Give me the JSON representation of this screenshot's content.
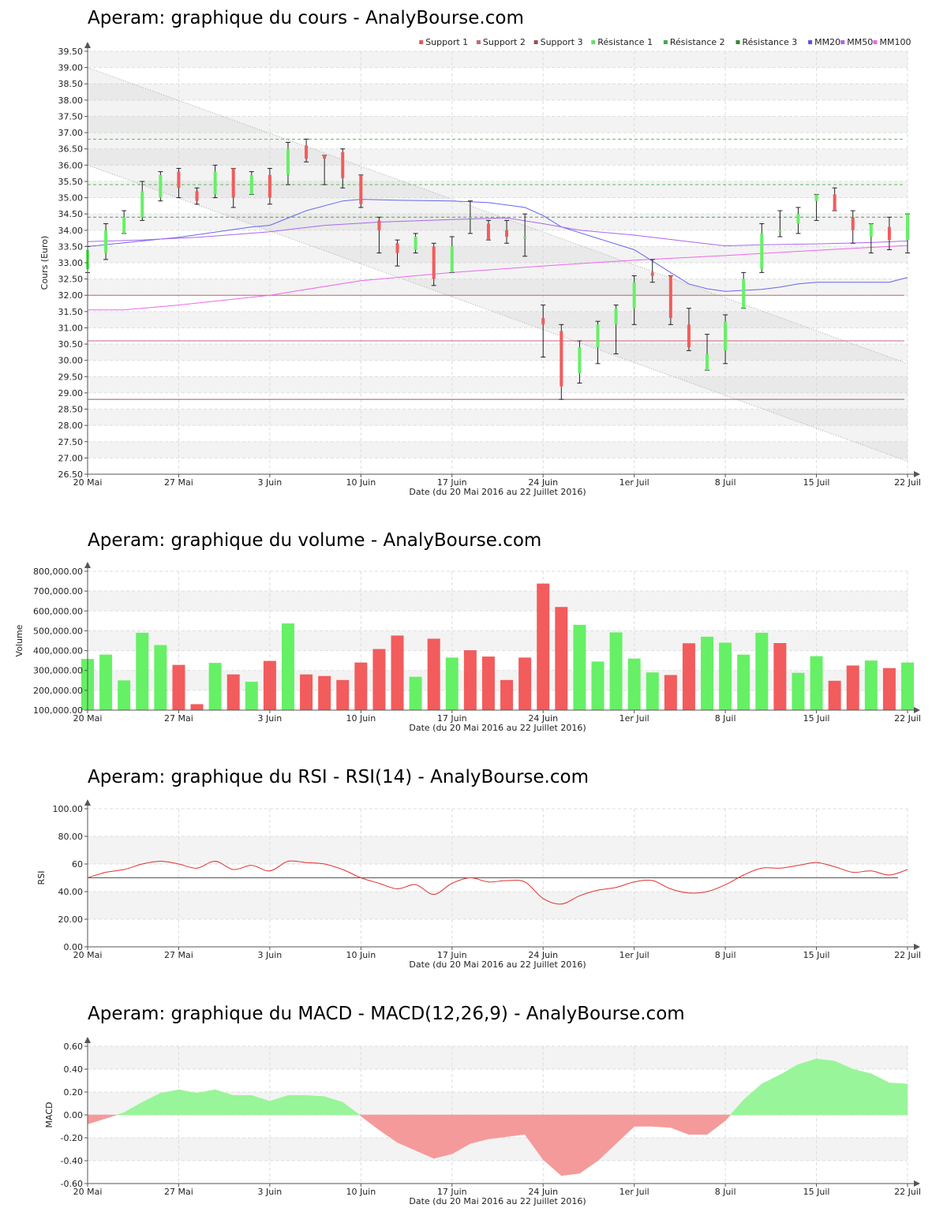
{
  "chart_data": [
    {
      "id": "cours",
      "type": "candlestick",
      "title": "Aperam: graphique du cours - AnalyBourse.com",
      "xlabel": "Date (du 20 Mai 2016 au 22 Juillet 2016)",
      "ylabel": "Cours (Euro)",
      "ylim": [
        26.5,
        39.5
      ],
      "yticks": [
        "26.50",
        "27.00",
        "27.50",
        "28.00",
        "28.50",
        "29.00",
        "29.50",
        "30.00",
        "30.50",
        "31.00",
        "31.50",
        "32.00",
        "32.50",
        "33.00",
        "33.50",
        "34.00",
        "34.50",
        "35.00",
        "35.50",
        "36.00",
        "36.50",
        "37.00",
        "37.50",
        "38.00",
        "38.50",
        "39.00",
        "39.50"
      ],
      "x_tick_labels": [
        {
          "i": 0,
          "label": "20 Mai"
        },
        {
          "i": 5,
          "label": "27 Mai"
        },
        {
          "i": 10,
          "label": "3 Juin"
        },
        {
          "i": 15,
          "label": "10 Juin"
        },
        {
          "i": 20,
          "label": "17 Juin"
        },
        {
          "i": 25,
          "label": "24 Juin"
        },
        {
          "i": 30,
          "label": "1er Juil"
        },
        {
          "i": 35,
          "label": "8 Juil"
        },
        {
          "i": 40,
          "label": "15 Juil"
        },
        {
          "i": 45,
          "label": "22 Juil"
        }
      ],
      "legend": [
        {
          "label": "Support 1",
          "color": "#e05a5a"
        },
        {
          "label": "Support 2",
          "color": "#c06a6a"
        },
        {
          "label": "Support 3",
          "color": "#9a5050"
        },
        {
          "label": "Résistance 1",
          "color": "#66dd66"
        },
        {
          "label": "Résistance 2",
          "color": "#44aa44"
        },
        {
          "label": "Résistance 3",
          "color": "#338833"
        },
        {
          "label": "MM20",
          "color": "#5555ee"
        },
        {
          "label": "MM50",
          "color": "#aa66ee"
        },
        {
          "label": "MM100",
          "color": "#ee66ee"
        }
      ],
      "legend_position": "top-right",
      "candles": [
        {
          "o": 32.8,
          "h": 33.5,
          "l": 32.7,
          "c": 33.4
        },
        {
          "o": 33.3,
          "h": 34.2,
          "l": 33.1,
          "c": 34.0
        },
        {
          "o": 33.9,
          "h": 34.6,
          "l": 33.9,
          "c": 34.4
        },
        {
          "o": 34.4,
          "h": 35.5,
          "l": 34.3,
          "c": 35.2
        },
        {
          "o": 35.0,
          "h": 35.8,
          "l": 34.9,
          "c": 35.7
        },
        {
          "o": 35.8,
          "h": 35.9,
          "l": 35.0,
          "c": 35.3
        },
        {
          "o": 35.2,
          "h": 35.3,
          "l": 34.8,
          "c": 34.9
        },
        {
          "o": 35.1,
          "h": 36.0,
          "l": 35.0,
          "c": 35.8
        },
        {
          "o": 35.9,
          "h": 35.9,
          "l": 34.7,
          "c": 35.0
        },
        {
          "o": 35.1,
          "h": 35.8,
          "l": 35.1,
          "c": 35.7
        },
        {
          "o": 35.7,
          "h": 35.9,
          "l": 34.8,
          "c": 35.0
        },
        {
          "o": 35.7,
          "h": 36.7,
          "l": 35.4,
          "c": 36.5
        },
        {
          "o": 36.6,
          "h": 36.8,
          "l": 36.1,
          "c": 36.2
        },
        {
          "o": 36.3,
          "h": 36.3,
          "l": 35.4,
          "c": 36.2
        },
        {
          "o": 36.4,
          "h": 36.5,
          "l": 35.3,
          "c": 35.6
        },
        {
          "o": 35.7,
          "h": 35.7,
          "l": 34.7,
          "c": 34.8
        },
        {
          "o": 34.3,
          "h": 34.4,
          "l": 33.3,
          "c": 34.0
        },
        {
          "o": 33.6,
          "h": 33.7,
          "l": 32.9,
          "c": 33.3
        },
        {
          "o": 33.4,
          "h": 33.9,
          "l": 33.3,
          "c": 33.8
        },
        {
          "o": 33.5,
          "h": 33.6,
          "l": 32.3,
          "c": 32.5
        },
        {
          "o": 32.7,
          "h": 33.8,
          "l": 32.7,
          "c": 33.5
        },
        {
          "o": 34.4,
          "h": 34.9,
          "l": 33.9,
          "c": 34.4
        },
        {
          "o": 34.2,
          "h": 34.3,
          "l": 33.7,
          "c": 33.7
        },
        {
          "o": 34.0,
          "h": 34.3,
          "l": 33.6,
          "c": 33.8
        },
        {
          "o": 33.8,
          "h": 34.5,
          "l": 33.2,
          "c": 33.8
        },
        {
          "o": 31.3,
          "h": 31.7,
          "l": 30.1,
          "c": 31.1
        },
        {
          "o": 30.9,
          "h": 31.1,
          "l": 28.8,
          "c": 29.2
        },
        {
          "o": 29.6,
          "h": 30.6,
          "l": 29.3,
          "c": 30.4
        },
        {
          "o": 30.4,
          "h": 31.2,
          "l": 29.9,
          "c": 31.1
        },
        {
          "o": 31.1,
          "h": 31.7,
          "l": 30.2,
          "c": 31.6
        },
        {
          "o": 31.6,
          "h": 32.6,
          "l": 31.1,
          "c": 32.4
        },
        {
          "o": 32.7,
          "h": 33.1,
          "l": 32.4,
          "c": 32.6
        },
        {
          "o": 32.6,
          "h": 32.6,
          "l": 31.1,
          "c": 31.3
        },
        {
          "o": 31.1,
          "h": 31.6,
          "l": 30.3,
          "c": 30.4
        },
        {
          "o": 29.7,
          "h": 30.8,
          "l": 29.7,
          "c": 30.2
        },
        {
          "o": 30.3,
          "h": 31.4,
          "l": 29.9,
          "c": 31.2
        },
        {
          "o": 31.6,
          "h": 32.7,
          "l": 31.6,
          "c": 32.5
        },
        {
          "o": 32.8,
          "h": 34.2,
          "l": 32.7,
          "c": 33.9
        },
        {
          "o": 34.0,
          "h": 34.6,
          "l": 33.8,
          "c": 34.0
        },
        {
          "o": 34.2,
          "h": 34.7,
          "l": 33.9,
          "c": 34.5
        },
        {
          "o": 34.9,
          "h": 35.1,
          "l": 34.3,
          "c": 35.1
        },
        {
          "o": 35.1,
          "h": 35.3,
          "l": 34.6,
          "c": 34.6
        },
        {
          "o": 34.4,
          "h": 34.6,
          "l": 33.6,
          "c": 34.0
        },
        {
          "o": 33.8,
          "h": 34.2,
          "l": 33.3,
          "c": 34.2
        },
        {
          "o": 34.1,
          "h": 34.4,
          "l": 33.4,
          "c": 33.7
        },
        {
          "o": 33.7,
          "h": 34.5,
          "l": 33.3,
          "c": 34.5
        }
      ],
      "horizontal_levels": [
        {
          "name": "Support 1",
          "value": 32.0,
          "color": "#c86464",
          "dashed": false
        },
        {
          "name": "Support 2",
          "value": 30.6,
          "color": "#c86478",
          "dashed": false
        },
        {
          "name": "Support 3",
          "value": 28.8,
          "color": "#965a64",
          "dashed": false
        },
        {
          "name": "Résistance 1",
          "value": 34.4,
          "color": "#5a9a5a",
          "dashed": true
        },
        {
          "name": "Résistance 2",
          "value": 35.4,
          "color": "#5aba5a",
          "dashed": true
        },
        {
          "name": "Résistance 3",
          "value": 36.8,
          "color": "#5aba5a",
          "dashed": true
        }
      ],
      "trend_channel": {
        "upper": [
          [
            0,
            39.0
          ],
          [
            45,
            29.9
          ]
        ],
        "lower": [
          [
            0,
            36.0
          ],
          [
            45,
            26.9
          ]
        ]
      },
      "moving_averages": [
        {
          "name": "MM20",
          "color": "#6666ee",
          "points": [
            [
              0,
              33.5
            ],
            [
              5,
              33.78
            ],
            [
              9,
              34.1
            ],
            [
              10,
              34.15
            ],
            [
              12,
              34.6
            ],
            [
              14,
              34.9
            ],
            [
              15,
              34.95
            ],
            [
              17,
              34.92
            ],
            [
              20,
              34.9
            ],
            [
              22,
              34.85
            ],
            [
              24,
              34.7
            ],
            [
              25,
              34.45
            ],
            [
              26,
              34.1
            ],
            [
              28,
              33.75
            ],
            [
              30,
              33.4
            ],
            [
              31,
              33.05
            ],
            [
              32,
              32.7
            ],
            [
              33,
              32.35
            ],
            [
              34,
              32.2
            ],
            [
              35,
              32.12
            ],
            [
              36,
              32.15
            ],
            [
              37,
              32.18
            ],
            [
              38,
              32.25
            ],
            [
              39,
              32.35
            ],
            [
              40,
              32.4
            ],
            [
              43,
              32.4
            ],
            [
              44,
              32.4
            ],
            [
              45,
              32.55
            ]
          ]
        },
        {
          "name": "MM50",
          "color": "#aa66ee",
          "points": [
            [
              0,
              33.65
            ],
            [
              3,
              33.7
            ],
            [
              6,
              33.78
            ],
            [
              10,
              33.95
            ],
            [
              13,
              34.15
            ],
            [
              16,
              34.25
            ],
            [
              20,
              34.33
            ],
            [
              23,
              34.38
            ],
            [
              25,
              34.2
            ],
            [
              27,
              34.0
            ],
            [
              30,
              33.85
            ],
            [
              33,
              33.65
            ],
            [
              35,
              33.52
            ],
            [
              37,
              33.55
            ],
            [
              40,
              33.58
            ],
            [
              43,
              33.62
            ],
            [
              45,
              33.67
            ]
          ]
        },
        {
          "name": "MM100",
          "color": "#ee66ee",
          "points": [
            [
              0,
              31.55
            ],
            [
              2,
              31.55
            ],
            [
              5,
              31.7
            ],
            [
              10,
              32.0
            ],
            [
              15,
              32.45
            ],
            [
              20,
              32.7
            ],
            [
              25,
              32.9
            ],
            [
              30,
              33.08
            ],
            [
              35,
              33.22
            ],
            [
              40,
              33.38
            ],
            [
              45,
              33.53
            ]
          ]
        }
      ]
    },
    {
      "id": "volume",
      "type": "bar",
      "title": "Aperam: graphique du volume - AnalyBourse.com",
      "xlabel": "Date (du 20 Mai 2016 au 22 Juillet 2016)",
      "ylabel": "Volume",
      "ylim": [
        100000,
        800000
      ],
      "yticks": [
        "100,000.00",
        "200,000.00",
        "300,000.00",
        "400,000.00",
        "500,000.00",
        "600,000.00",
        "700,000.00",
        "800,000.00"
      ],
      "values": [
        358000,
        380000,
        250000,
        490000,
        428000,
        328000,
        130000,
        338000,
        280000,
        243000,
        348000,
        537000,
        280000,
        272000,
        252000,
        340000,
        408000,
        476000,
        268000,
        460000,
        365000,
        402000,
        370000,
        252000,
        365000,
        738000,
        620000,
        530000,
        345000,
        492000,
        360000,
        290000,
        277000,
        437000,
        470000,
        440000,
        380000,
        490000,
        438000,
        288000,
        372000,
        248000,
        325000,
        350000,
        312000,
        340000
      ],
      "colors": [
        "g",
        "g",
        "g",
        "g",
        "g",
        "r",
        "r",
        "g",
        "r",
        "g",
        "r",
        "g",
        "r",
        "r",
        "r",
        "r",
        "r",
        "r",
        "g",
        "r",
        "g",
        "r",
        "r",
        "r",
        "r",
        "r",
        "r",
        "g",
        "g",
        "g",
        "g",
        "g",
        "r",
        "r",
        "g",
        "g",
        "g",
        "g",
        "r",
        "g",
        "g",
        "r",
        "r",
        "g",
        "r",
        "g"
      ]
    },
    {
      "id": "rsi",
      "type": "line",
      "title": "Aperam: graphique du RSI - RSI(14) - AnalyBourse.com",
      "xlabel": "Date (du 20 Mai 2016 au 22 Juillet 2016)",
      "ylabel": "RSI",
      "ylim": [
        0,
        100
      ],
      "yticks": [
        "0.00",
        "20.00",
        "40.00",
        "60",
        "80.00",
        "100.00"
      ],
      "reference_line": 50,
      "values": [
        50,
        54,
        56,
        60,
        62,
        60,
        57,
        62,
        56,
        59,
        55,
        62,
        61,
        60,
        56,
        50,
        46,
        42,
        45,
        38,
        46,
        50,
        47,
        48,
        47,
        35,
        31,
        37,
        41,
        43,
        47,
        48,
        42,
        39,
        40,
        45,
        52,
        57,
        57,
        59,
        61,
        58,
        54,
        55,
        52,
        56
      ]
    },
    {
      "id": "macd",
      "type": "area",
      "title": "Aperam: graphique du MACD - MACD(12,26,9) - AnalyBourse.com",
      "xlabel": "Date (du 20 Mai 2016 au 22 Juillet 2016)",
      "ylabel": "MACD",
      "ylim": [
        -0.6,
        0.6
      ],
      "yticks": [
        "-0.60",
        "-0.40",
        "-0.20",
        "0.00",
        "0.20",
        "0.40",
        "0.60"
      ],
      "values": [
        -0.08,
        -0.03,
        0.02,
        0.11,
        0.19,
        0.22,
        0.19,
        0.22,
        0.17,
        0.17,
        0.12,
        0.17,
        0.17,
        0.16,
        0.11,
        -0.01,
        -0.13,
        -0.24,
        -0.31,
        -0.38,
        -0.34,
        -0.25,
        -0.21,
        -0.19,
        -0.17,
        -0.39,
        -0.53,
        -0.51,
        -0.4,
        -0.25,
        -0.1,
        -0.1,
        -0.11,
        -0.17,
        -0.17,
        -0.05,
        0.13,
        0.27,
        0.35,
        0.44,
        0.49,
        0.47,
        0.4,
        0.36,
        0.28,
        0.27
      ]
    }
  ]
}
